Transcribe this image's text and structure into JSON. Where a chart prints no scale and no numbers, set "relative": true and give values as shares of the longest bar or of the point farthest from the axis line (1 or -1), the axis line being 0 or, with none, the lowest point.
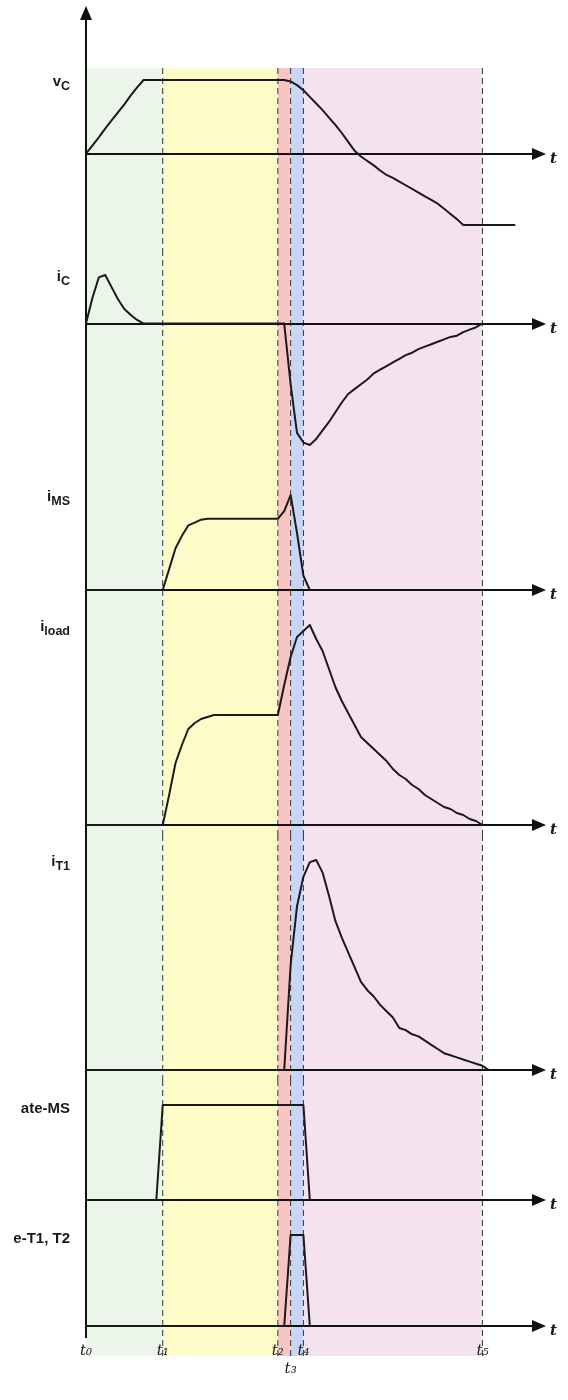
{
  "chart_data": [
    {
      "type": "line",
      "ylabel": "v$_{C}$",
      "xlabel": "t",
      "relative": true,
      "grid": false,
      "marker": "none",
      "line_style": "solid",
      "tick_labels": false,
      "color": "#1a1a1a",
      "categories": [
        "t₀",
        null,
        null,
        null,
        null,
        null,
        null,
        null,
        null,
        null,
        null,
        null,
        "t₁",
        null,
        null,
        null,
        null,
        null,
        null,
        null,
        null,
        null,
        null,
        null,
        null,
        null,
        null,
        null,
        null,
        null,
        "t₂",
        null,
        "t₃",
        null,
        "t₄",
        null,
        null,
        null,
        null,
        null,
        null,
        null,
        null,
        null,
        null,
        null,
        null,
        null,
        null,
        null,
        null,
        null,
        null,
        null,
        null,
        null,
        null,
        null,
        null,
        null,
        null,
        null,
        "t₅",
        null,
        null,
        null,
        null,
        null,
        null,
        null,
        null,
        null
      ],
      "values": [
        0,
        0.11,
        0.22,
        0.34,
        0.45,
        0.56,
        0.67,
        0.79,
        0.9,
        1,
        1,
        1,
        1,
        1,
        1,
        1,
        1,
        1,
        1,
        1,
        1,
        1,
        1,
        1,
        1,
        1,
        1,
        1,
        1,
        1,
        1,
        1,
        0.98,
        0.93,
        0.86,
        0.77,
        0.68,
        0.59,
        0.49,
        0.39,
        0.28,
        0.16,
        0.04,
        -0.04,
        -0.1,
        -0.16,
        -0.23,
        -0.29,
        -0.33,
        -0.38,
        -0.43,
        -0.48,
        -0.53,
        -0.58,
        -0.63,
        -0.68,
        -0.75,
        -0.82,
        -0.89,
        -0.97,
        -0.97,
        -0.97,
        -0.97,
        -0.97,
        -0.97,
        -0.97,
        -0.97,
        -0.97,
        null,
        null,
        null,
        null
      ],
      "bands": [
        {
          "axis": "x",
          "from": "t₀",
          "to": "t₁",
          "color": "#ebf5e9"
        },
        {
          "axis": "x",
          "from": "t₁",
          "to": "t₂",
          "color": "#fdfcc9"
        },
        {
          "axis": "x",
          "from": "t₂",
          "to": "t₃",
          "color": "#f7c5c3"
        },
        {
          "axis": "x",
          "from": "t₃",
          "to": "t₄",
          "color": "#c8d6f5"
        },
        {
          "axis": "x",
          "from": "t₄",
          "to": "t₅",
          "color": "#f4e3ec"
        }
      ],
      "ref_lines": [
        {
          "axis": "x",
          "value": "t₁",
          "color": "#333333",
          "line_style": "dashed"
        },
        {
          "axis": "x",
          "value": "t₂",
          "color": "#333333",
          "line_style": "dashed"
        },
        {
          "axis": "x",
          "value": "t₃",
          "color": "#333333",
          "line_style": "dashed"
        },
        {
          "axis": "x",
          "value": "t₄",
          "color": "#333333",
          "line_style": "dashed"
        },
        {
          "axis": "x",
          "value": "t₅",
          "color": "#333333",
          "line_style": "dashed"
        }
      ]
    },
    {
      "type": "line",
      "ylabel": "i$_{C}$",
      "xlabel": "t",
      "relative": true,
      "grid": false,
      "marker": "none",
      "line_style": "solid",
      "tick_labels": false,
      "color": "#1a1a1a",
      "categories": [
        "t₀",
        null,
        null,
        null,
        null,
        null,
        null,
        null,
        null,
        null,
        null,
        null,
        "t₁",
        null,
        null,
        null,
        null,
        null,
        null,
        null,
        null,
        null,
        null,
        null,
        null,
        null,
        null,
        null,
        null,
        null,
        "t₂",
        null,
        "t₃",
        null,
        "t₄",
        null,
        null,
        null,
        null,
        null,
        null,
        null,
        null,
        null,
        null,
        null,
        null,
        null,
        null,
        null,
        null,
        null,
        null,
        null,
        null,
        null,
        null,
        null,
        null,
        null,
        null,
        null,
        "t₅",
        null,
        null,
        null,
        null,
        null,
        null,
        null,
        null,
        null
      ],
      "values": [
        0,
        0.21,
        0.38,
        0.4,
        0.3,
        0.2,
        0.12,
        0.07,
        0.03,
        0,
        0,
        0,
        0,
        0,
        0,
        0,
        0,
        0,
        0,
        0,
        0,
        0,
        0,
        0,
        0,
        0,
        0,
        0,
        0,
        0,
        0,
        0,
        -0.5,
        -0.9,
        -0.98,
        -1,
        -0.95,
        -0.88,
        -0.81,
        -0.73,
        -0.65,
        -0.58,
        -0.54,
        -0.5,
        -0.46,
        -0.41,
        -0.38,
        -0.35,
        -0.32,
        -0.29,
        -0.26,
        -0.24,
        -0.21,
        -0.19,
        -0.17,
        -0.15,
        -0.13,
        -0.11,
        -0.1,
        -0.07,
        -0.05,
        -0.03,
        0,
        null,
        null,
        null,
        null,
        null,
        null,
        null,
        null,
        null
      ],
      "bands": [
        {
          "axis": "x",
          "from": "t₀",
          "to": "t₁",
          "color": "#ebf5e9"
        },
        {
          "axis": "x",
          "from": "t₁",
          "to": "t₂",
          "color": "#fdfcc9"
        },
        {
          "axis": "x",
          "from": "t₂",
          "to": "t₃",
          "color": "#f7c5c3"
        },
        {
          "axis": "x",
          "from": "t₃",
          "to": "t₄",
          "color": "#c8d6f5"
        },
        {
          "axis": "x",
          "from": "t₄",
          "to": "t₅",
          "color": "#f4e3ec"
        }
      ],
      "ref_lines": [
        {
          "axis": "x",
          "value": "t₁",
          "color": "#333333",
          "line_style": "dashed"
        },
        {
          "axis": "x",
          "value": "t₂",
          "color": "#333333",
          "line_style": "dashed"
        },
        {
          "axis": "x",
          "value": "t₃",
          "color": "#333333",
          "line_style": "dashed"
        },
        {
          "axis": "x",
          "value": "t₄",
          "color": "#333333",
          "line_style": "dashed"
        },
        {
          "axis": "x",
          "value": "t₅",
          "color": "#333333",
          "line_style": "dashed"
        }
      ]
    },
    {
      "type": "line",
      "ylabel": "i$_{MS}$",
      "xlabel": "t",
      "relative": true,
      "grid": false,
      "marker": "none",
      "line_style": "solid",
      "tick_labels": false,
      "color": "#1a1a1a",
      "categories": [
        "t₀",
        null,
        null,
        null,
        null,
        null,
        null,
        null,
        null,
        null,
        null,
        null,
        "t₁",
        null,
        null,
        null,
        null,
        null,
        null,
        null,
        null,
        null,
        null,
        null,
        null,
        null,
        null,
        null,
        null,
        null,
        "t₂",
        null,
        "t₃",
        null,
        "t₄",
        null,
        null,
        null,
        null,
        null,
        null,
        null,
        null,
        null,
        null,
        null,
        null,
        null,
        null,
        null,
        null,
        null,
        null,
        null,
        null,
        null,
        null,
        null,
        null,
        null,
        null,
        null,
        "t₅",
        null,
        null,
        null,
        null,
        null,
        null,
        null,
        null,
        null
      ],
      "values": [
        0,
        0,
        0,
        0,
        0,
        0,
        0,
        0,
        0,
        0,
        0,
        0,
        0,
        0.22,
        0.44,
        0.57,
        0.68,
        0.71,
        0.74,
        0.75,
        0.75,
        0.75,
        0.75,
        0.75,
        0.75,
        0.75,
        0.75,
        0.75,
        0.75,
        0.75,
        0.75,
        0.83,
        1,
        0.6,
        0.15,
        0,
        null,
        null,
        null,
        null,
        null,
        null,
        null,
        null,
        null,
        null,
        null,
        null,
        null,
        null,
        null,
        null,
        null,
        null,
        null,
        null,
        null,
        null,
        null,
        null,
        null,
        null,
        null,
        null,
        null,
        null,
        null,
        null,
        null,
        null,
        null,
        null
      ],
      "bands": [
        {
          "axis": "x",
          "from": "t₀",
          "to": "t₁",
          "color": "#ebf5e9"
        },
        {
          "axis": "x",
          "from": "t₁",
          "to": "t₂",
          "color": "#fdfcc9"
        },
        {
          "axis": "x",
          "from": "t₂",
          "to": "t₃",
          "color": "#f7c5c3"
        },
        {
          "axis": "x",
          "from": "t₃",
          "to": "t₄",
          "color": "#c8d6f5"
        },
        {
          "axis": "x",
          "from": "t₄",
          "to": "t₅",
          "color": "#f4e3ec"
        }
      ],
      "ref_lines": [
        {
          "axis": "x",
          "value": "t₁",
          "color": "#333333",
          "line_style": "dashed"
        },
        {
          "axis": "x",
          "value": "t₂",
          "color": "#333333",
          "line_style": "dashed"
        },
        {
          "axis": "x",
          "value": "t₃",
          "color": "#333333",
          "line_style": "dashed"
        },
        {
          "axis": "x",
          "value": "t₄",
          "color": "#333333",
          "line_style": "dashed"
        },
        {
          "axis": "x",
          "value": "t₅",
          "color": "#333333",
          "line_style": "dashed"
        }
      ]
    },
    {
      "type": "line",
      "ylabel": "i$_{load}$",
      "xlabel": "t",
      "relative": true,
      "grid": false,
      "marker": "none",
      "line_style": "solid",
      "tick_labels": false,
      "color": "#1a1a1a",
      "categories": [
        "t₀",
        null,
        null,
        null,
        null,
        null,
        null,
        null,
        null,
        null,
        null,
        null,
        "t₁",
        null,
        null,
        null,
        null,
        null,
        null,
        null,
        null,
        null,
        null,
        null,
        null,
        null,
        null,
        null,
        null,
        null,
        "t₂",
        null,
        "t₃",
        null,
        "t₄",
        null,
        null,
        null,
        null,
        null,
        null,
        null,
        null,
        null,
        null,
        null,
        null,
        null,
        null,
        null,
        null,
        null,
        null,
        null,
        null,
        null,
        null,
        null,
        null,
        null,
        null,
        null,
        "t₅",
        null,
        null,
        null,
        null,
        null,
        null,
        null,
        null,
        null
      ],
      "values": [
        0,
        0,
        0,
        0,
        0,
        0,
        0,
        0,
        0,
        0,
        0,
        0,
        0,
        0.15,
        0.31,
        0.4,
        0.48,
        0.51,
        0.53,
        0.54,
        0.55,
        0.55,
        0.55,
        0.55,
        0.55,
        0.55,
        0.55,
        0.55,
        0.55,
        0.55,
        0.55,
        0.7,
        0.84,
        0.94,
        0.97,
        1,
        0.93,
        0.87,
        0.78,
        0.69,
        0.62,
        0.56,
        0.5,
        0.44,
        0.41,
        0.38,
        0.35,
        0.32,
        0.28,
        0.25,
        0.23,
        0.2,
        0.18,
        0.15,
        0.13,
        0.11,
        0.09,
        0.08,
        0.06,
        0.05,
        0.03,
        0.02,
        0,
        null,
        null,
        null,
        null,
        null,
        null,
        null,
        null,
        null
      ],
      "bands": [
        {
          "axis": "x",
          "from": "t₀",
          "to": "t₁",
          "color": "#ebf5e9"
        },
        {
          "axis": "x",
          "from": "t₁",
          "to": "t₂",
          "color": "#fdfcc9"
        },
        {
          "axis": "x",
          "from": "t₂",
          "to": "t₃",
          "color": "#f7c5c3"
        },
        {
          "axis": "x",
          "from": "t₃",
          "to": "t₄",
          "color": "#c8d6f5"
        },
        {
          "axis": "x",
          "from": "t₄",
          "to": "t₅",
          "color": "#f4e3ec"
        }
      ],
      "ref_lines": [
        {
          "axis": "x",
          "value": "t₁",
          "color": "#333333",
          "line_style": "dashed"
        },
        {
          "axis": "x",
          "value": "t₂",
          "color": "#333333",
          "line_style": "dashed"
        },
        {
          "axis": "x",
          "value": "t₃",
          "color": "#333333",
          "line_style": "dashed"
        },
        {
          "axis": "x",
          "value": "t₄",
          "color": "#333333",
          "line_style": "dashed"
        },
        {
          "axis": "x",
          "value": "t₅",
          "color": "#333333",
          "line_style": "dashed"
        }
      ]
    },
    {
      "type": "line",
      "ylabel": "i$_{T1}$",
      "xlabel": "t",
      "relative": true,
      "grid": false,
      "marker": "none",
      "line_style": "solid",
      "tick_labels": false,
      "color": "#1a1a1a",
      "categories": [
        "t₀",
        null,
        null,
        null,
        null,
        null,
        null,
        null,
        null,
        null,
        null,
        null,
        "t₁",
        null,
        null,
        null,
        null,
        null,
        null,
        null,
        null,
        null,
        null,
        null,
        null,
        null,
        null,
        null,
        null,
        null,
        "t₂",
        null,
        "t₃",
        null,
        "t₄",
        null,
        null,
        null,
        null,
        null,
        null,
        null,
        null,
        null,
        null,
        null,
        null,
        null,
        null,
        null,
        null,
        null,
        null,
        null,
        null,
        null,
        null,
        null,
        null,
        null,
        null,
        null,
        "t₅",
        null,
        null,
        null,
        null,
        null,
        null,
        null,
        null,
        null
      ],
      "values": [
        0,
        0,
        0,
        0,
        0,
        0,
        0,
        0,
        0,
        0,
        0,
        0,
        0,
        0,
        0,
        0,
        0,
        0,
        0,
        0,
        0,
        0,
        0,
        0,
        0,
        0,
        0,
        0,
        0,
        0,
        0,
        0,
        0.5,
        0.78,
        0.92,
        0.99,
        1,
        0.94,
        0.83,
        0.71,
        0.63,
        0.56,
        0.49,
        0.42,
        0.38,
        0.35,
        0.31,
        0.28,
        0.25,
        0.2,
        0.19,
        0.17,
        0.16,
        0.14,
        0.12,
        0.1,
        0.08,
        0.07,
        0.06,
        0.05,
        0.04,
        0.03,
        0.02,
        0,
        null,
        null,
        null,
        null,
        null,
        null,
        null,
        null
      ],
      "bands": [
        {
          "axis": "x",
          "from": "t₀",
          "to": "t₁",
          "color": "#ebf5e9"
        },
        {
          "axis": "x",
          "from": "t₁",
          "to": "t₂",
          "color": "#fdfcc9"
        },
        {
          "axis": "x",
          "from": "t₂",
          "to": "t₃",
          "color": "#f7c5c3"
        },
        {
          "axis": "x",
          "from": "t₃",
          "to": "t₄",
          "color": "#c8d6f5"
        },
        {
          "axis": "x",
          "from": "t₄",
          "to": "t₅",
          "color": "#f4e3ec"
        }
      ],
      "ref_lines": [
        {
          "axis": "x",
          "value": "t₁",
          "color": "#333333",
          "line_style": "dashed"
        },
        {
          "axis": "x",
          "value": "t₂",
          "color": "#333333",
          "line_style": "dashed"
        },
        {
          "axis": "x",
          "value": "t₃",
          "color": "#333333",
          "line_style": "dashed"
        },
        {
          "axis": "x",
          "value": "t₄",
          "color": "#333333",
          "line_style": "dashed"
        },
        {
          "axis": "x",
          "value": "t₅",
          "color": "#333333",
          "line_style": "dashed"
        }
      ]
    },
    {
      "type": "line",
      "ylabel": "ate-MS",
      "xlabel": "t",
      "relative": true,
      "grid": false,
      "marker": "none",
      "line_style": "solid",
      "tick_labels": false,
      "color": "#1a1a1a",
      "categories": [
        "t₀",
        null,
        null,
        null,
        null,
        null,
        null,
        null,
        null,
        null,
        null,
        null,
        "t₁",
        null,
        null,
        null,
        null,
        null,
        null,
        null,
        null,
        null,
        null,
        null,
        null,
        null,
        null,
        null,
        null,
        null,
        "t₂",
        null,
        "t₃",
        null,
        "t₄",
        null,
        null,
        null,
        null,
        null,
        null,
        null,
        null,
        null,
        null,
        null,
        null,
        null,
        null,
        null,
        null,
        null,
        null,
        null,
        null,
        null,
        null,
        null,
        null,
        null,
        null,
        null,
        "t₅",
        null,
        null,
        null,
        null,
        null,
        null,
        null,
        null,
        null
      ],
      "values": [
        0,
        0,
        0,
        0,
        0,
        0,
        0,
        0,
        0,
        0,
        0,
        0,
        1,
        1,
        1,
        1,
        1,
        1,
        1,
        1,
        1,
        1,
        1,
        1,
        1,
        1,
        1,
        1,
        1,
        1,
        1,
        1,
        1,
        1,
        1,
        0,
        null,
        null,
        null,
        null,
        null,
        null,
        null,
        null,
        null,
        null,
        null,
        null,
        null,
        null,
        null,
        null,
        null,
        null,
        null,
        null,
        null,
        null,
        null,
        null,
        null,
        null,
        null,
        null,
        null,
        null,
        null,
        null,
        null,
        null,
        null,
        null
      ],
      "bands": [
        {
          "axis": "x",
          "from": "t₀",
          "to": "t₁",
          "color": "#ebf5e9"
        },
        {
          "axis": "x",
          "from": "t₁",
          "to": "t₂",
          "color": "#fdfcc9"
        },
        {
          "axis": "x",
          "from": "t₂",
          "to": "t₃",
          "color": "#f7c5c3"
        },
        {
          "axis": "x",
          "from": "t₃",
          "to": "t₄",
          "color": "#c8d6f5"
        },
        {
          "axis": "x",
          "from": "t₄",
          "to": "t₅",
          "color": "#f4e3ec"
        }
      ],
      "ref_lines": [
        {
          "axis": "x",
          "value": "t₁",
          "color": "#333333",
          "line_style": "dashed"
        },
        {
          "axis": "x",
          "value": "t₂",
          "color": "#333333",
          "line_style": "dashed"
        },
        {
          "axis": "x",
          "value": "t₃",
          "color": "#333333",
          "line_style": "dashed"
        },
        {
          "axis": "x",
          "value": "t₄",
          "color": "#333333",
          "line_style": "dashed"
        },
        {
          "axis": "x",
          "value": "t₅",
          "color": "#333333",
          "line_style": "dashed"
        }
      ]
    },
    {
      "type": "line",
      "ylabel": "e-T1, T2",
      "xlabel": "t",
      "relative": true,
      "grid": false,
      "marker": "none",
      "line_style": "solid",
      "tick_labels": "x",
      "color": "#1a1a1a",
      "categories": [
        "t₀",
        null,
        null,
        null,
        null,
        null,
        null,
        null,
        null,
        null,
        null,
        null,
        "t₁",
        null,
        null,
        null,
        null,
        null,
        null,
        null,
        null,
        null,
        null,
        null,
        null,
        null,
        null,
        null,
        null,
        null,
        "t₂",
        null,
        "t₃",
        null,
        "t₄",
        null,
        null,
        null,
        null,
        null,
        null,
        null,
        null,
        null,
        null,
        null,
        null,
        null,
        null,
        null,
        null,
        null,
        null,
        null,
        null,
        null,
        null,
        null,
        null,
        null,
        null,
        null,
        "t₅",
        null,
        null,
        null,
        null,
        null,
        null,
        null,
        null,
        null
      ],
      "values": [
        0,
        0,
        0,
        0,
        0,
        0,
        0,
        0,
        0,
        0,
        0,
        0,
        0,
        0,
        0,
        0,
        0,
        0,
        0,
        0,
        0,
        0,
        0,
        0,
        0,
        0,
        0,
        0,
        0,
        0,
        0,
        0,
        1,
        1,
        1,
        0,
        null,
        null,
        null,
        null,
        null,
        null,
        null,
        null,
        null,
        null,
        null,
        null,
        null,
        null,
        null,
        null,
        null,
        null,
        null,
        null,
        null,
        null,
        null,
        null,
        null,
        null,
        null,
        null,
        null,
        null,
        null,
        null,
        null,
        null,
        null,
        null
      ],
      "bands": [
        {
          "axis": "x",
          "from": "t₀",
          "to": "t₁",
          "color": "#ebf5e9"
        },
        {
          "axis": "x",
          "from": "t₁",
          "to": "t₂",
          "color": "#fdfcc9"
        },
        {
          "axis": "x",
          "from": "t₂",
          "to": "t₃",
          "color": "#f7c5c3"
        },
        {
          "axis": "x",
          "from": "t₃",
          "to": "t₄",
          "color": "#c8d6f5"
        },
        {
          "axis": "x",
          "from": "t₄",
          "to": "t₅",
          "color": "#f4e3ec"
        }
      ],
      "ref_lines": [
        {
          "axis": "x",
          "value": "t₁",
          "color": "#333333",
          "line_style": "dashed"
        },
        {
          "axis": "x",
          "value": "t₂",
          "color": "#333333",
          "line_style": "dashed"
        },
        {
          "axis": "x",
          "value": "t₃",
          "color": "#333333",
          "line_style": "dashed"
        },
        {
          "axis": "x",
          "value": "t₄",
          "color": "#333333",
          "line_style": "dashed"
        },
        {
          "axis": "x",
          "value": "t₅",
          "color": "#333333",
          "line_style": "dashed"
        }
      ]
    }
  ]
}
